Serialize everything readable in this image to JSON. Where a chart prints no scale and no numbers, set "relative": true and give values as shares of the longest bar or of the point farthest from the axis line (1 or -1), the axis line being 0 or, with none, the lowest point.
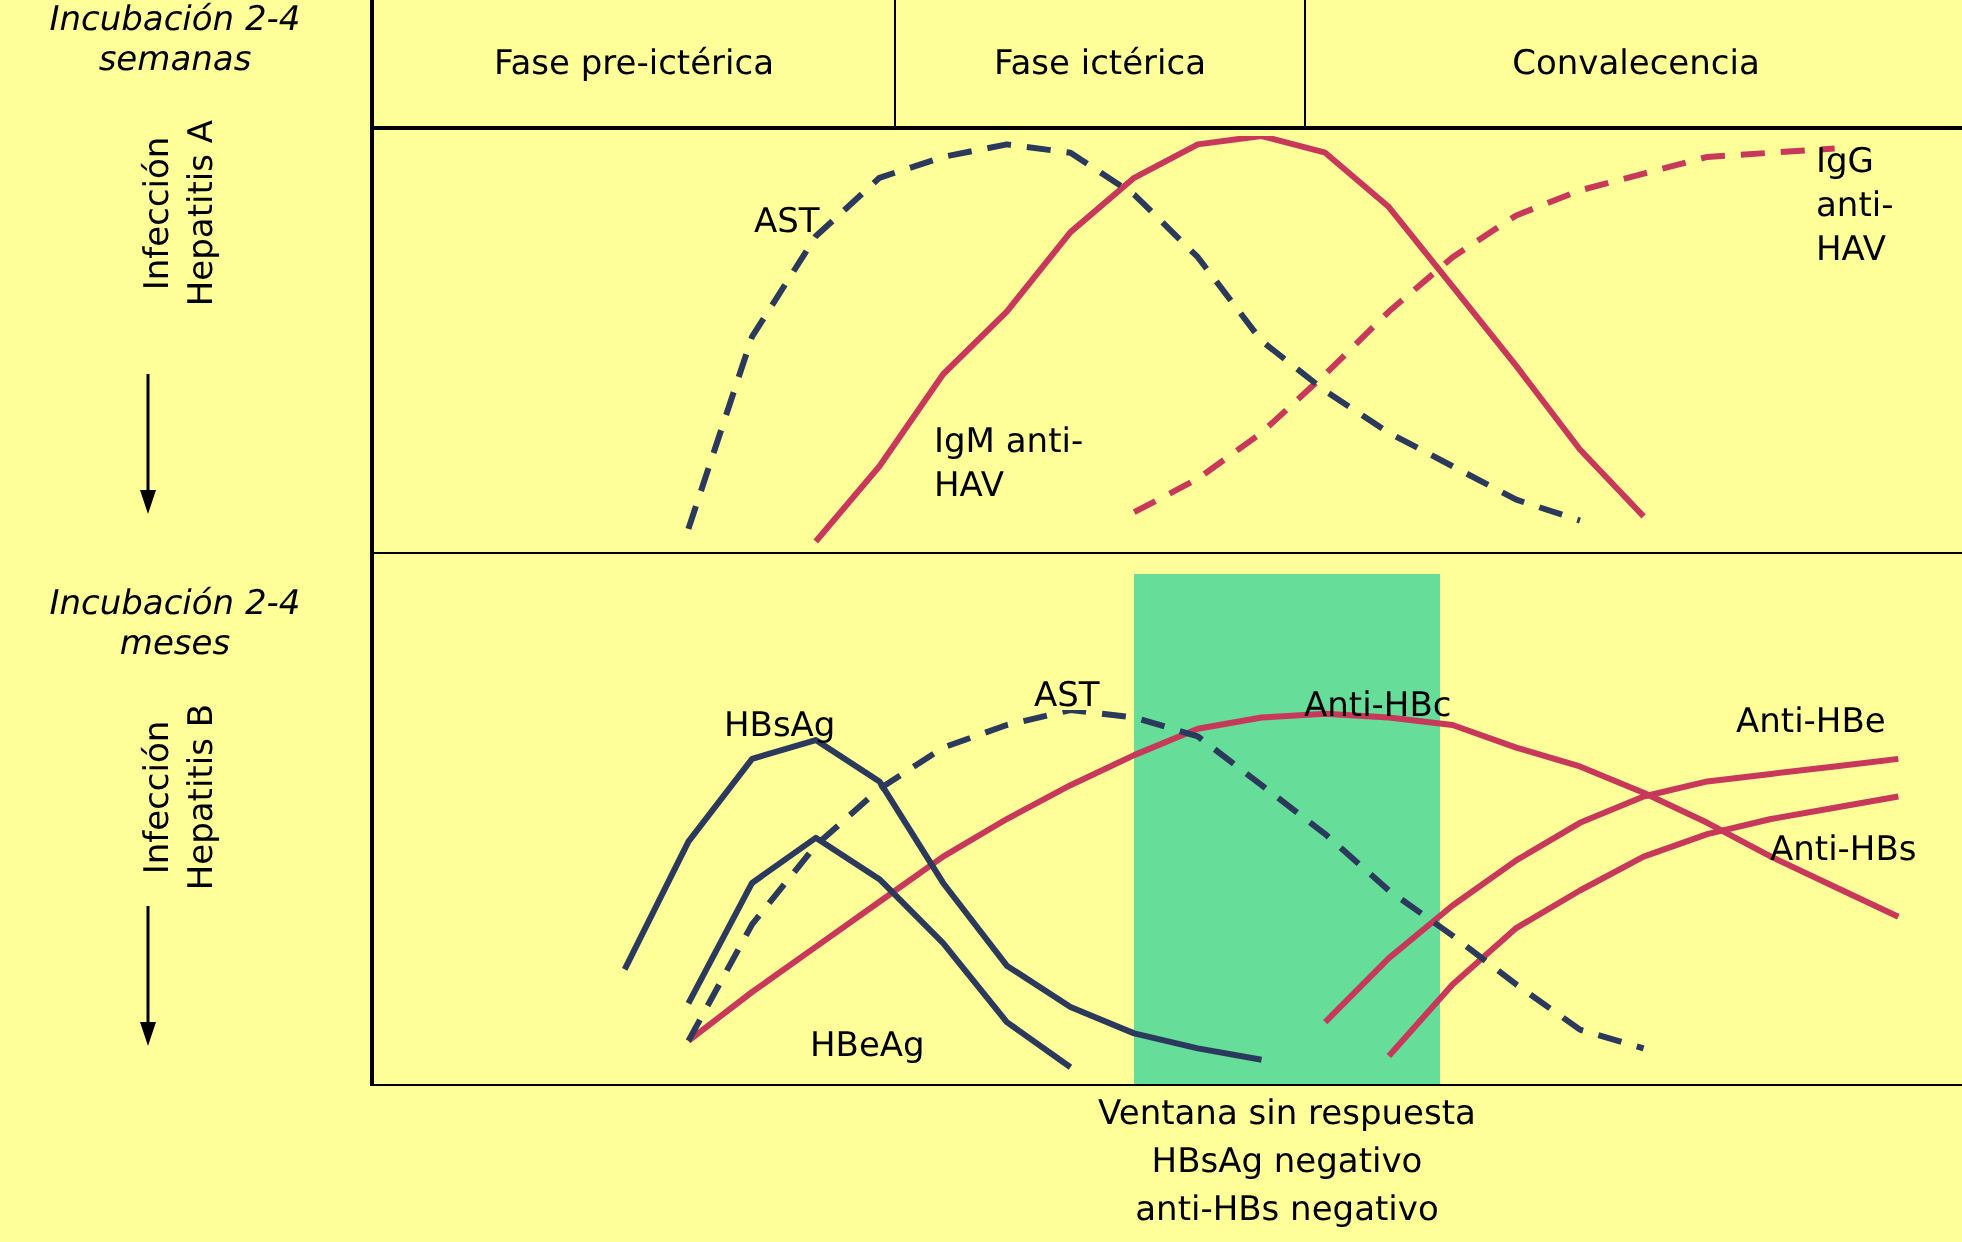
{
  "chart_data": [
    {
      "type": "other",
      "annotations": [
        "Fase pre-ictérica",
        "Fase ictérica",
        "Convalecencia"
      ]
    },
    {
      "type": "line",
      "title": "Incubación 2-4 semanas",
      "ylabel": "Infección Hepatitis A",
      "relative": true,
      "grid": false,
      "legend": false,
      "categories": [
        null,
        null,
        null,
        null,
        null,
        null,
        null,
        null,
        null,
        null,
        null,
        null,
        null,
        null,
        null,
        null,
        null,
        null,
        null,
        null,
        null,
        null,
        null,
        null,
        null,
        null
      ],
      "series": [
        {
          "name": "AST",
          "color": "#2b3a5c",
          "line_style": "dashed",
          "values": [
            null,
            null,
            null,
            null,
            null,
            0.06,
            0.52,
            0.76,
            0.9,
            0.95,
            0.98,
            0.96,
            0.86,
            0.71,
            0.51,
            0.39,
            0.29,
            0.21,
            0.13,
            0.08,
            null,
            null,
            null,
            null,
            null,
            null
          ]
        },
        {
          "name": "IgM anti-HAV",
          "color": "#c8385a",
          "line_style": "solid",
          "values": [
            null,
            null,
            null,
            null,
            null,
            null,
            null,
            0.03,
            0.21,
            0.43,
            0.58,
            0.77,
            0.9,
            0.98,
            1,
            0.96,
            0.83,
            0.64,
            0.45,
            0.25,
            0.09,
            null,
            null,
            null,
            null,
            null
          ]
        },
        {
          "name": "IgG anti-HAV",
          "color": "#c8385a",
          "line_style": "dashed",
          "values": [
            null,
            null,
            null,
            null,
            null,
            null,
            null,
            null,
            null,
            null,
            null,
            null,
            0.1,
            0.18,
            0.29,
            0.43,
            0.58,
            0.71,
            0.81,
            0.87,
            0.91,
            0.95,
            0.96,
            0.97,
            null,
            null
          ]
        }
      ]
    },
    {
      "type": "line",
      "title": "Incubación 2-4 meses",
      "ylabel": "Infección Hepatitis B",
      "relative": true,
      "grid": false,
      "legend": false,
      "annotations": [
        "Ventana sin respuesta\nHBsAg negativo\nanti-HBs negativo"
      ],
      "categories": [
        null,
        null,
        null,
        null,
        null,
        null,
        null,
        null,
        null,
        null,
        null,
        null,
        null,
        null,
        null,
        null,
        null,
        null,
        null,
        null,
        null,
        null,
        null,
        null,
        null,
        null
      ],
      "series": [
        {
          "name": "HBsAg",
          "color": "#2b3a5c",
          "line_style": "solid",
          "values": [
            null,
            null,
            null,
            null,
            0.31,
            0.65,
            0.87,
            0.92,
            0.81,
            0.54,
            0.32,
            0.21,
            0.14,
            0.1,
            0.07,
            null,
            null,
            null,
            null,
            null,
            null,
            null,
            null,
            null,
            null,
            null
          ]
        },
        {
          "name": "HBeAg",
          "color": "#2b3a5c",
          "line_style": "solid",
          "values": [
            null,
            null,
            null,
            null,
            null,
            0.22,
            0.54,
            0.66,
            0.55,
            0.38,
            0.17,
            0.05,
            null,
            null,
            null,
            null,
            null,
            null,
            null,
            null,
            null,
            null,
            null,
            null,
            null,
            null
          ]
        },
        {
          "name": "AST",
          "color": "#2b3a5c",
          "line_style": "dashed",
          "values": [
            null,
            null,
            null,
            null,
            null,
            0.12,
            0.43,
            0.64,
            0.79,
            0.9,
            0.96,
            1,
            0.98,
            0.93,
            0.8,
            0.67,
            0.52,
            0.4,
            0.27,
            0.15,
            0.1,
            null,
            null,
            null,
            null,
            null
          ]
        },
        {
          "name": "Anti-HBc",
          "color": "#c8385a",
          "line_style": "solid",
          "values": [
            null,
            null,
            null,
            null,
            null,
            0.12,
            0.25,
            0.37,
            0.49,
            0.61,
            0.71,
            0.8,
            0.88,
            0.95,
            0.98,
            0.99,
            0.98,
            0.96,
            0.9,
            0.85,
            0.78,
            0.7,
            0.61,
            0.53,
            0.45,
            null
          ]
        },
        {
          "name": "Anti-HBe",
          "color": "#c8385a",
          "line_style": "solid",
          "values": [
            null,
            null,
            null,
            null,
            null,
            null,
            null,
            null,
            null,
            null,
            null,
            null,
            null,
            null,
            null,
            0.17,
            0.34,
            0.48,
            0.6,
            0.7,
            0.77,
            0.81,
            0.83,
            0.85,
            0.87,
            null
          ]
        },
        {
          "name": "Anti-HBs",
          "color": "#c8385a",
          "line_style": "solid",
          "values": [
            null,
            null,
            null,
            null,
            null,
            null,
            null,
            null,
            null,
            null,
            null,
            null,
            null,
            null,
            null,
            null,
            0.08,
            0.27,
            0.42,
            0.52,
            0.61,
            0.67,
            0.71,
            0.74,
            0.77,
            null
          ]
        }
      ]
    }
  ]
}
